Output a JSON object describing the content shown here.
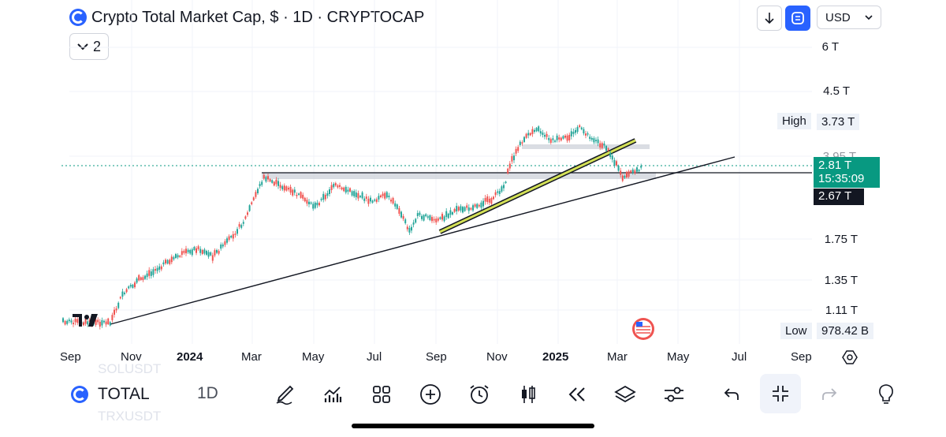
{
  "header": {
    "title": "Crypto Total Market Cap, $ · 1D · CRYPTOCAP",
    "indicators_count": "2",
    "currency": "USD"
  },
  "price_axis": {
    "labels": [
      "6 T",
      "4.5 T",
      "3.95 T",
      "1.75 T",
      "1.35 T",
      "1.11 T"
    ],
    "high_label": "High",
    "high_value": "3.73 T",
    "current_price": "2.81 T",
    "countdown": "15:35:09",
    "crosshair_price": "2.67 T",
    "low_label": "Low",
    "low_value": "978.42 B"
  },
  "time_axis": {
    "labels": [
      "Sep",
      "Nov",
      "2024",
      "Mar",
      "May",
      "Jul",
      "Sep",
      "Nov",
      "2025",
      "Mar",
      "May",
      "Jul",
      "Sep"
    ]
  },
  "bottom_bar": {
    "symbol": "TOTAL",
    "interval": "1D",
    "ghost_top": "SOLUSDT",
    "ghost_bottom": "TRXUSDT"
  },
  "colors": {
    "up": "#26a69a",
    "down": "#ef5350",
    "accent": "#2962ff",
    "price_tag": "#089981",
    "trend_highlight": "#d4e157"
  },
  "icons": [
    "search-logo-icon",
    "chevron-down-icon",
    "arrow-down-icon",
    "compare-icon",
    "brush-icon",
    "indicators-icon",
    "grid-icon",
    "add-icon",
    "alarm-icon",
    "candles-icon",
    "replay-icon",
    "layers-icon",
    "settings-sliders-icon",
    "undo-icon",
    "collapse-icon",
    "redo-icon",
    "lightbulb-icon",
    "flag-us-icon",
    "settings-hex-icon",
    "tradingview-logo-icon"
  ]
}
